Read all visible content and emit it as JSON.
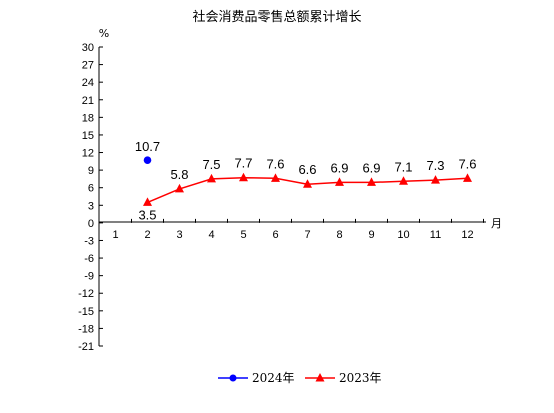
{
  "chart_data": {
    "type": "line",
    "title": "社会消费品零售总额累计增长",
    "ylabel": "%",
    "xlabel": "月",
    "ylim": [
      -21,
      30
    ],
    "yticks": [
      30,
      27,
      24,
      21,
      18,
      15,
      12,
      9,
      6,
      3,
      0,
      -3,
      -6,
      -9,
      -12,
      -15,
      -18,
      -21
    ],
    "categories": [
      "1",
      "2",
      "3",
      "4",
      "5",
      "6",
      "7",
      "8",
      "9",
      "10",
      "11",
      "12"
    ],
    "grid": false,
    "legend": "bottom",
    "series": [
      {
        "name": "2024年",
        "color": "#0000ff",
        "marker": "circle",
        "x": [
          2
        ],
        "values": [
          10.7
        ],
        "labels": [
          "10.7"
        ]
      },
      {
        "name": "2023年",
        "color": "#ff0000",
        "marker": "triangle",
        "x": [
          2,
          3,
          4,
          5,
          6,
          7,
          8,
          9,
          10,
          11,
          12
        ],
        "values": [
          3.5,
          5.8,
          7.5,
          7.7,
          7.6,
          6.6,
          6.9,
          6.9,
          7.1,
          7.3,
          7.6
        ],
        "labels": [
          "3.5",
          "5.8",
          "7.5",
          "7.7",
          "7.6",
          "6.6",
          "6.9",
          "6.9",
          "7.1",
          "7.3",
          "7.6"
        ]
      }
    ]
  }
}
